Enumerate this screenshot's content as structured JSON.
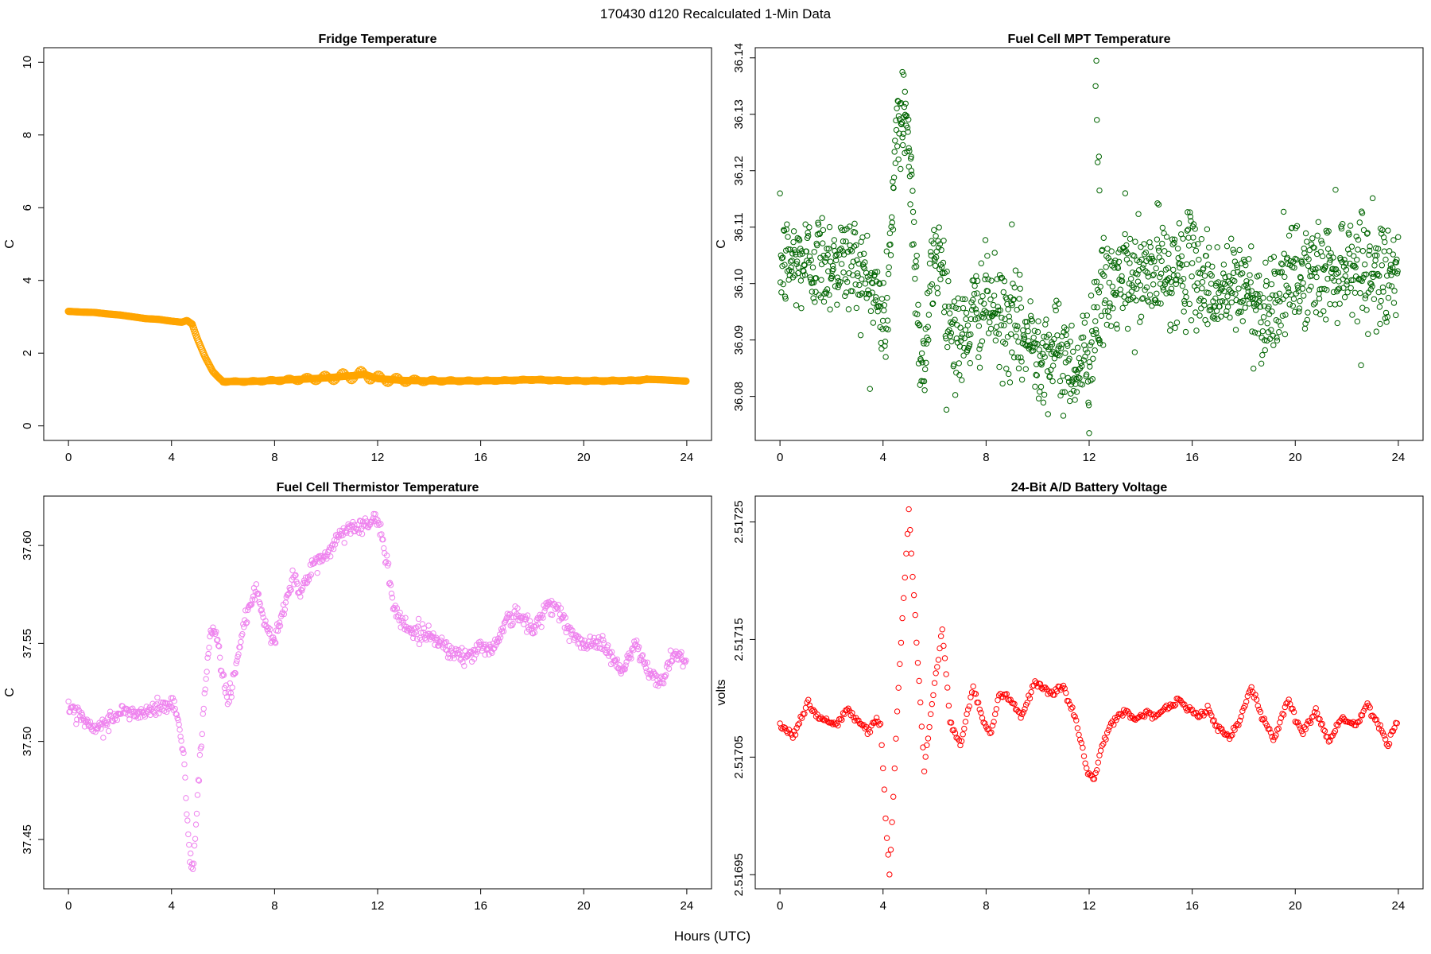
{
  "page": {
    "title": "170430   d120   Recalculated 1-Min Data",
    "xlabel": "Hours (UTC)"
  },
  "chart_data": [
    {
      "id": "fridge",
      "type": "scatter",
      "title": "Fridge Temperature",
      "ylabel": "C",
      "xlim": [
        -0.96,
        24.96
      ],
      "ylim": [
        -0.4,
        10.4
      ],
      "xticks": [
        0,
        4,
        8,
        12,
        16,
        20,
        24
      ],
      "xtick_labels": [
        "0",
        "4",
        "8",
        "12",
        "16",
        "20",
        "24"
      ],
      "yticks": [
        0,
        2,
        4,
        6,
        8,
        10
      ],
      "ytick_labels": [
        "0",
        "2",
        "4",
        "6",
        "8",
        "10"
      ],
      "color": "#FFA500",
      "series_points": [
        [
          0,
          3.15
        ],
        [
          0.5,
          3.13
        ],
        [
          1,
          3.12
        ],
        [
          1.5,
          3.08
        ],
        [
          2,
          3.05
        ],
        [
          2.5,
          3.0
        ],
        [
          3,
          2.95
        ],
        [
          3.5,
          2.93
        ],
        [
          4,
          2.88
        ],
        [
          4.4,
          2.85
        ],
        [
          4.6,
          2.9
        ],
        [
          4.8,
          2.8
        ],
        [
          5,
          2.4
        ],
        [
          5.3,
          1.9
        ],
        [
          5.6,
          1.5
        ],
        [
          5.8,
          1.35
        ],
        [
          6,
          1.22
        ],
        [
          7,
          1.22
        ],
        [
          8,
          1.25
        ],
        [
          9,
          1.28
        ],
        [
          10,
          1.32
        ],
        [
          11,
          1.38
        ],
        [
          11.5,
          1.42
        ],
        [
          12,
          1.3
        ],
        [
          13,
          1.25
        ],
        [
          14,
          1.24
        ],
        [
          15,
          1.24
        ],
        [
          16,
          1.24
        ],
        [
          17,
          1.25
        ],
        [
          18,
          1.27
        ],
        [
          19,
          1.25
        ],
        [
          20,
          1.24
        ],
        [
          21,
          1.24
        ],
        [
          22,
          1.25
        ],
        [
          22.5,
          1.28
        ],
        [
          23,
          1.27
        ],
        [
          23.5,
          1.25
        ],
        [
          24,
          1.23
        ]
      ],
      "band": {
        "x_range": [
          6,
          22.5
        ],
        "peak_x": 11.3,
        "peak_halfwidth": 0.18
      }
    },
    {
      "id": "mpt",
      "type": "scatter",
      "title": "Fuel Cell MPT Temperature",
      "ylabel": "C",
      "xlim": [
        -0.96,
        24.96
      ],
      "ylim": [
        36.0722,
        36.1418
      ],
      "xticks": [
        0,
        4,
        8,
        12,
        16,
        20,
        24
      ],
      "xtick_labels": [
        "0",
        "4",
        "8",
        "12",
        "16",
        "20",
        "24"
      ],
      "yticks": [
        36.08,
        36.09,
        36.1,
        36.11,
        36.12,
        36.13,
        36.14
      ],
      "ytick_labels": [
        "36.08",
        "36.09",
        "36.10",
        "36.11",
        "36.12",
        "36.13",
        "36.14"
      ],
      "color": "#006400",
      "series_points": [
        [
          0,
          36.1035
        ],
        [
          1,
          36.104
        ],
        [
          2,
          36.104
        ],
        [
          3,
          36.1035
        ],
        [
          3.8,
          36.097
        ],
        [
          4.1,
          36.092
        ],
        [
          4.5,
          36.125
        ],
        [
          4.9,
          36.13
        ],
        [
          5.2,
          36.11
        ],
        [
          5.4,
          36.09
        ],
        [
          5.6,
          36.085
        ],
        [
          5.9,
          36.102
        ],
        [
          6.2,
          36.107
        ],
        [
          6.5,
          36.095
        ],
        [
          7,
          36.089
        ],
        [
          7.5,
          36.094
        ],
        [
          8,
          36.097
        ],
        [
          8.5,
          36.094
        ],
        [
          9,
          36.092
        ],
        [
          10,
          36.089
        ],
        [
          11,
          36.087
        ],
        [
          11.6,
          36.085
        ],
        [
          12,
          36.088
        ],
        [
          12.3,
          36.096
        ],
        [
          13,
          36.1
        ],
        [
          14,
          36.101
        ],
        [
          15,
          36.102
        ],
        [
          16,
          36.103
        ],
        [
          17,
          36.098
        ],
        [
          18,
          36.1
        ],
        [
          18.7,
          36.095
        ],
        [
          19.5,
          36.099
        ],
        [
          20,
          36.101
        ],
        [
          21,
          36.102
        ],
        [
          22,
          36.104
        ],
        [
          23,
          36.102
        ],
        [
          24,
          36.103
        ]
      ],
      "noise_sd": 0.0045,
      "outliers": [
        [
          4.4,
          36.117
        ],
        [
          4.6,
          36.122
        ],
        [
          4.7,
          36.132
        ],
        [
          4.75,
          36.1375
        ],
        [
          4.8,
          36.137
        ],
        [
          4.85,
          36.134
        ],
        [
          4.9,
          36.128
        ],
        [
          5.0,
          36.124
        ],
        [
          5.1,
          36.12
        ],
        [
          12.0,
          36.0735
        ],
        [
          12.25,
          36.135
        ],
        [
          12.28,
          36.1395
        ],
        [
          12.3,
          36.129
        ],
        [
          12.33,
          36.1215
        ],
        [
          12.38,
          36.1225
        ],
        [
          12.4,
          36.1165
        ],
        [
          13.4,
          36.116
        ],
        [
          14.7,
          36.114
        ],
        [
          9.0,
          36.1105
        ],
        [
          22.6,
          36.1125
        ]
      ]
    },
    {
      "id": "thermistor",
      "type": "scatter",
      "title": "Fuel Cell Thermistor Temperature",
      "ylabel": "C",
      "xlim": [
        -0.96,
        24.96
      ],
      "ylim": [
        37.4248,
        37.6252
      ],
      "xticks": [
        0,
        4,
        8,
        12,
        16,
        20,
        24
      ],
      "xtick_labels": [
        "0",
        "4",
        "8",
        "12",
        "16",
        "20",
        "24"
      ],
      "yticks": [
        37.45,
        37.5,
        37.55,
        37.6
      ],
      "ytick_labels": [
        "37.45",
        "37.50",
        "37.55",
        "37.60"
      ],
      "color": "#EE82EE",
      "series_points": [
        [
          0,
          37.515
        ],
        [
          0.5,
          37.512
        ],
        [
          1,
          37.505
        ],
        [
          1.5,
          37.51
        ],
        [
          2,
          37.515
        ],
        [
          3,
          37.514
        ],
        [
          3.5,
          37.518
        ],
        [
          4,
          37.519
        ],
        [
          4.2,
          37.515
        ],
        [
          4.5,
          37.49
        ],
        [
          4.7,
          37.44
        ],
        [
          4.85,
          37.435
        ],
        [
          5.0,
          37.47
        ],
        [
          5.2,
          37.51
        ],
        [
          5.5,
          37.555
        ],
        [
          5.7,
          37.56
        ],
        [
          5.9,
          37.54
        ],
        [
          6.2,
          37.52
        ],
        [
          6.6,
          37.545
        ],
        [
          7.0,
          37.57
        ],
        [
          7.3,
          37.575
        ],
        [
          7.6,
          37.56
        ],
        [
          8.0,
          37.55
        ],
        [
          8.3,
          37.565
        ],
        [
          8.7,
          37.585
        ],
        [
          9.0,
          37.575
        ],
        [
          9.5,
          37.59
        ],
        [
          10,
          37.595
        ],
        [
          10.5,
          37.605
        ],
        [
          11,
          37.61
        ],
        [
          11.5,
          37.61
        ],
        [
          12,
          37.613
        ],
        [
          12.4,
          37.59
        ],
        [
          12.6,
          37.57
        ],
        [
          13,
          37.56
        ],
        [
          13.5,
          37.555
        ],
        [
          14,
          37.555
        ],
        [
          14.5,
          37.55
        ],
        [
          15,
          37.545
        ],
        [
          15.5,
          37.543
        ],
        [
          16,
          37.548
        ],
        [
          16.5,
          37.548
        ],
        [
          17,
          37.562
        ],
        [
          17.5,
          37.565
        ],
        [
          18,
          37.556
        ],
        [
          18.7,
          37.572
        ],
        [
          19,
          37.567
        ],
        [
          19.5,
          37.555
        ],
        [
          20,
          37.548
        ],
        [
          20.5,
          37.553
        ],
        [
          21,
          37.545
        ],
        [
          21.5,
          37.535
        ],
        [
          22,
          37.55
        ],
        [
          22.5,
          37.535
        ],
        [
          23,
          37.53
        ],
        [
          23.5,
          37.546
        ],
        [
          24,
          37.54
        ]
      ],
      "noise_sd": 0.0022
    },
    {
      "id": "battery",
      "type": "scatter",
      "title": "24-Bit A/D Battery Voltage",
      "ylabel": "volts",
      "xlim": [
        -0.96,
        24.96
      ],
      "ylim": [
        2.516938,
        2.517272
      ],
      "xticks": [
        0,
        4,
        8,
        12,
        16,
        20,
        24
      ],
      "xtick_labels": [
        "0",
        "4",
        "8",
        "12",
        "16",
        "20",
        "24"
      ],
      "yticks": [
        2.51695,
        2.51705,
        2.51715,
        2.51725
      ],
      "ytick_labels": [
        "2.51695",
        "2.51705",
        "2.51715",
        "2.51725"
      ],
      "color": "#FF0000",
      "series_points": [
        [
          0,
          2.517078
        ],
        [
          0.3,
          2.517072
        ],
        [
          0.5,
          2.517068
        ],
        [
          0.8,
          2.517082
        ],
        [
          1.1,
          2.517097
        ],
        [
          1.4,
          2.517085
        ],
        [
          1.8,
          2.517082
        ],
        [
          2.2,
          2.517077
        ],
        [
          2.6,
          2.51709
        ],
        [
          3.1,
          2.517079
        ],
        [
          3.4,
          2.517072
        ],
        [
          3.7,
          2.517082
        ],
        [
          3.9,
          2.51708
        ],
        [
          4.1,
          2.517
        ],
        [
          4.25,
          2.51695
        ],
        [
          4.6,
          2.51711
        ],
        [
          5.0,
          2.51726
        ],
        [
          5.3,
          2.51715
        ],
        [
          5.6,
          2.51704
        ],
        [
          5.9,
          2.517095
        ],
        [
          6.3,
          2.51716
        ],
        [
          6.6,
          2.51708
        ],
        [
          7.0,
          2.51706
        ],
        [
          7.5,
          2.51711
        ],
        [
          7.9,
          2.51708
        ],
        [
          8.2,
          2.51707
        ],
        [
          8.5,
          2.517105
        ],
        [
          8.9,
          2.5171
        ],
        [
          9.4,
          2.517085
        ],
        [
          9.9,
          2.517115
        ],
        [
          10.5,
          2.517105
        ],
        [
          11,
          2.51711
        ],
        [
          11.5,
          2.51708
        ],
        [
          11.9,
          2.51704
        ],
        [
          12.2,
          2.51703
        ],
        [
          12.5,
          2.51706
        ],
        [
          12.9,
          2.51708
        ],
        [
          13.4,
          2.51709
        ],
        [
          13.8,
          2.517082
        ],
        [
          14.2,
          2.517088
        ],
        [
          14.6,
          2.517085
        ],
        [
          15.0,
          2.517092
        ],
        [
          15.5,
          2.517098
        ],
        [
          16.0,
          2.517088
        ],
        [
          16.3,
          2.517085
        ],
        [
          16.6,
          2.517092
        ],
        [
          17.0,
          2.517075
        ],
        [
          17.5,
          2.517065
        ],
        [
          17.8,
          2.51708
        ],
        [
          18.3,
          2.51711
        ],
        [
          18.7,
          2.517085
        ],
        [
          19.2,
          2.517065
        ],
        [
          19.7,
          2.5171
        ],
        [
          20.3,
          2.51707
        ],
        [
          20.8,
          2.51709
        ],
        [
          21.3,
          2.517063
        ],
        [
          21.8,
          2.517085
        ],
        [
          22.3,
          2.517075
        ],
        [
          22.8,
          2.517095
        ],
        [
          23.3,
          2.517075
        ],
        [
          23.6,
          2.517062
        ],
        [
          24,
          2.517085
        ]
      ],
      "noise_sd": 1.5e-06
    }
  ]
}
